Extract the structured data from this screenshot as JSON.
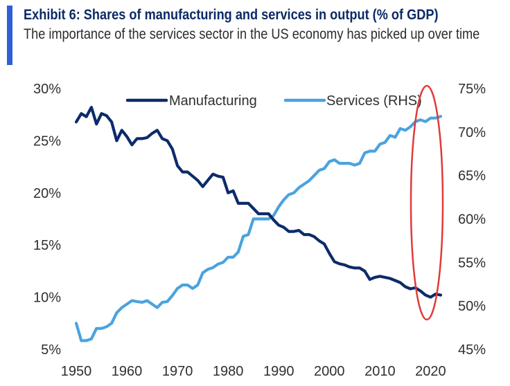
{
  "header": {
    "title": "Exhibit 6: Shares of manufacturing and services in output (% of GDP)",
    "subtitle": "The importance of the services sector in the US economy has picked up over time"
  },
  "colors": {
    "manufacturing": "#0d2b6b",
    "services": "#4aa3df",
    "annotation": "#e03a3a",
    "title_accent": "#2f5fd8"
  },
  "chart_data": {
    "type": "line",
    "title": "Exhibit 6: Shares of manufacturing and services in output (% of GDP)",
    "xlabel": "",
    "ylabel": "",
    "xlim": [
      1950,
      2022
    ],
    "ylim_left": [
      5,
      30
    ],
    "ylim_right": [
      45,
      75
    ],
    "x_ticks": [
      "1950",
      "1960",
      "1970",
      "1980",
      "1990",
      "2000",
      "2010",
      "2020"
    ],
    "y_ticks_left": [
      "30%",
      "25%",
      "20%",
      "15%",
      "10%",
      "5%"
    ],
    "y_ticks_right": [
      "75%",
      "70%",
      "65%",
      "60%",
      "55%",
      "50%",
      "45%"
    ],
    "grid": false,
    "legend": {
      "placement": "top",
      "entries": [
        "Manufacturing",
        "Services (RHS)"
      ]
    },
    "annotations": [
      {
        "type": "ellipse",
        "description": "highlights recent years 2017-2022"
      }
    ],
    "x": [
      1950,
      1951,
      1952,
      1953,
      1954,
      1955,
      1956,
      1957,
      1958,
      1959,
      1960,
      1961,
      1962,
      1963,
      1964,
      1965,
      1966,
      1967,
      1968,
      1969,
      1970,
      1971,
      1972,
      1973,
      1974,
      1975,
      1976,
      1977,
      1978,
      1979,
      1980,
      1981,
      1982,
      1983,
      1984,
      1985,
      1986,
      1987,
      1988,
      1989,
      1990,
      1991,
      1992,
      1993,
      1994,
      1995,
      1996,
      1997,
      1998,
      1999,
      2000,
      2001,
      2002,
      2003,
      2004,
      2005,
      2006,
      2007,
      2008,
      2009,
      2010,
      2011,
      2012,
      2013,
      2014,
      2015,
      2016,
      2017,
      2018,
      2019,
      2020,
      2021,
      2022
    ],
    "series": [
      {
        "name": "Manufacturing",
        "axis": "left",
        "values": [
          26.8,
          27.6,
          27.3,
          28.2,
          26.6,
          27.6,
          27.4,
          26.8,
          25.0,
          26.0,
          25.4,
          24.6,
          25.2,
          25.2,
          25.3,
          25.7,
          26.0,
          25.2,
          25.0,
          24.2,
          22.6,
          22.0,
          22.0,
          21.6,
          21.2,
          20.6,
          21.2,
          21.8,
          21.6,
          21.5,
          20.0,
          20.2,
          19.0,
          19.0,
          19.0,
          18.5,
          18.0,
          18.0,
          18.0,
          17.4,
          16.9,
          16.7,
          16.3,
          16.3,
          16.4,
          16.0,
          16.0,
          15.8,
          15.4,
          15.1,
          14.2,
          13.4,
          13.2,
          13.1,
          12.9,
          12.8,
          12.8,
          12.5,
          11.7,
          11.9,
          12.0,
          11.9,
          11.8,
          11.6,
          11.4,
          11.0,
          10.8,
          10.9,
          10.6,
          10.2,
          10.0,
          10.3,
          10.2
        ]
      },
      {
        "name": "Services (RHS)",
        "axis": "right",
        "values": [
          48.0,
          46.0,
          46.0,
          46.2,
          47.4,
          47.4,
          47.6,
          48.0,
          49.2,
          49.8,
          50.2,
          50.6,
          50.5,
          50.4,
          50.6,
          50.2,
          49.8,
          50.4,
          50.5,
          51.2,
          52.0,
          52.4,
          52.4,
          52.0,
          52.4,
          53.8,
          54.2,
          54.4,
          54.8,
          55.0,
          55.6,
          55.6,
          56.2,
          58.0,
          58.2,
          60.0,
          60.0,
          60.0,
          60.0,
          60.4,
          61.4,
          62.2,
          62.8,
          63.0,
          63.6,
          64.0,
          64.4,
          65.0,
          65.6,
          65.8,
          66.6,
          66.8,
          66.4,
          66.4,
          66.4,
          66.2,
          66.4,
          67.6,
          67.8,
          67.8,
          68.6,
          68.8,
          69.6,
          69.4,
          70.4,
          70.2,
          70.6,
          71.2,
          71.4,
          71.2,
          71.6,
          71.6,
          71.8
        ]
      }
    ]
  }
}
